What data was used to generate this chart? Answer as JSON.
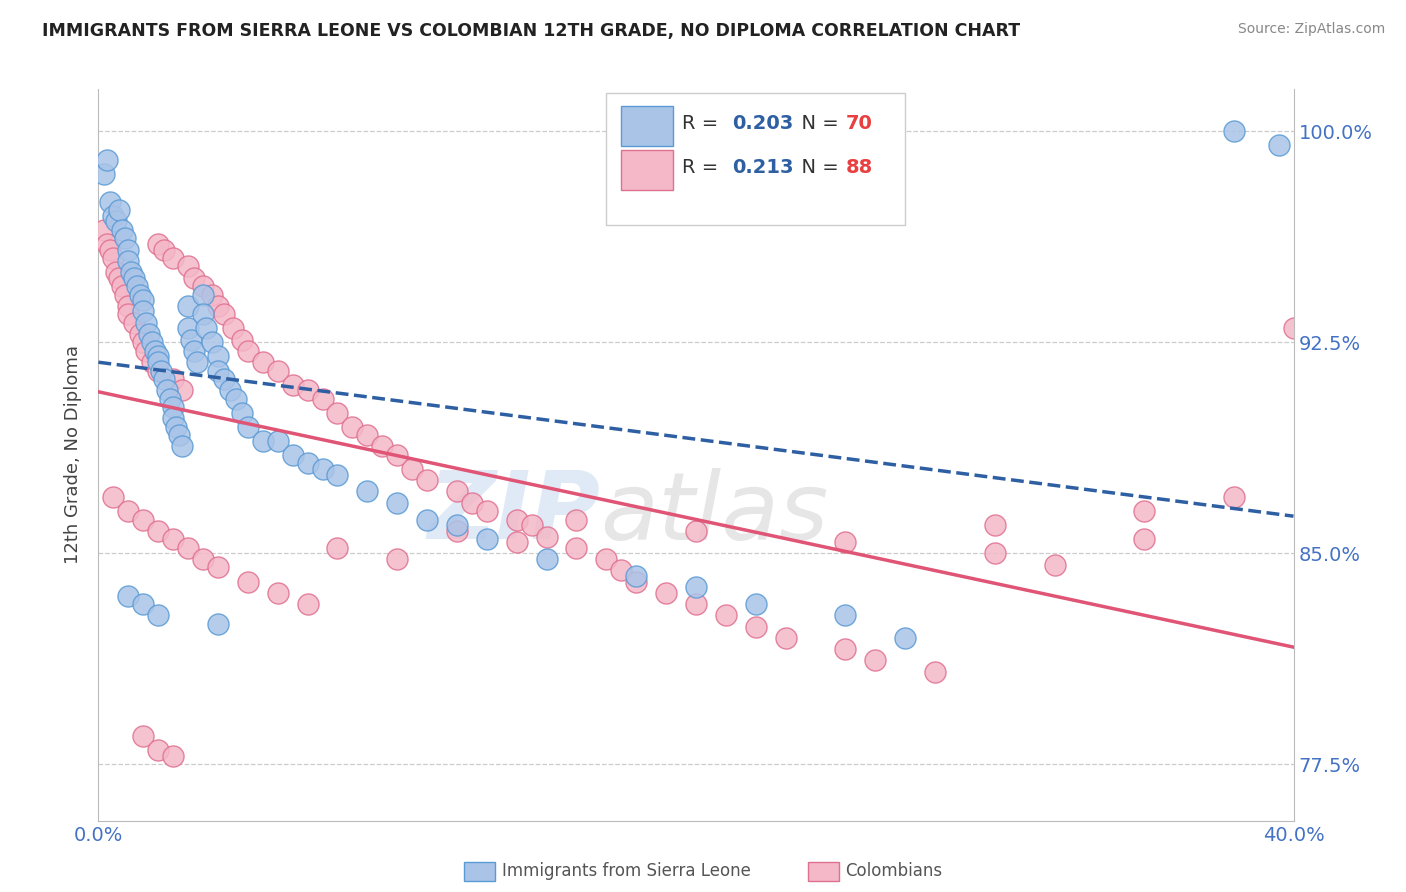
{
  "title": "IMMIGRANTS FROM SIERRA LEONE VS COLOMBIAN 12TH GRADE, NO DIPLOMA CORRELATION CHART",
  "source": "Source: ZipAtlas.com",
  "ylabel": "12th Grade, No Diploma",
  "xlim": [
    0.0,
    0.4
  ],
  "ylim": [
    0.755,
    1.015
  ],
  "yticks": [
    0.775,
    0.85,
    0.925,
    1.0
  ],
  "yticklabels": [
    "77.5%",
    "85.0%",
    "92.5%",
    "100.0%"
  ],
  "blue_R": 0.203,
  "blue_N": 70,
  "pink_R": 0.213,
  "pink_N": 88,
  "blue_color": "#aac4e8",
  "blue_edge": "#5b9bd5",
  "pink_color": "#f4b8c8",
  "pink_edge": "#e07090",
  "blue_line_color": "#2e5fa3",
  "pink_line_color": "#e05575",
  "legend_blue_label": "Immigrants from Sierra Leone",
  "legend_pink_label": "Colombians",
  "blue_x": [
    0.002,
    0.003,
    0.004,
    0.005,
    0.006,
    0.007,
    0.008,
    0.009,
    0.01,
    0.01,
    0.011,
    0.012,
    0.013,
    0.014,
    0.015,
    0.015,
    0.016,
    0.017,
    0.018,
    0.019,
    0.02,
    0.02,
    0.021,
    0.022,
    0.023,
    0.024,
    0.025,
    0.025,
    0.026,
    0.027,
    0.028,
    0.03,
    0.03,
    0.031,
    0.032,
    0.033,
    0.035,
    0.035,
    0.036,
    0.038,
    0.04,
    0.04,
    0.042,
    0.044,
    0.046,
    0.048,
    0.05,
    0.055,
    0.06,
    0.065,
    0.07,
    0.075,
    0.08,
    0.09,
    0.1,
    0.11,
    0.12,
    0.13,
    0.15,
    0.18,
    0.2,
    0.22,
    0.25,
    0.27,
    0.01,
    0.015,
    0.02,
    0.04,
    0.38,
    0.395
  ],
  "blue_y": [
    0.985,
    0.99,
    0.975,
    0.97,
    0.968,
    0.972,
    0.965,
    0.962,
    0.958,
    0.954,
    0.95,
    0.948,
    0.945,
    0.942,
    0.94,
    0.936,
    0.932,
    0.928,
    0.925,
    0.922,
    0.92,
    0.918,
    0.915,
    0.912,
    0.908,
    0.905,
    0.902,
    0.898,
    0.895,
    0.892,
    0.888,
    0.938,
    0.93,
    0.926,
    0.922,
    0.918,
    0.942,
    0.935,
    0.93,
    0.925,
    0.92,
    0.915,
    0.912,
    0.908,
    0.905,
    0.9,
    0.895,
    0.89,
    0.89,
    0.885,
    0.882,
    0.88,
    0.878,
    0.872,
    0.868,
    0.862,
    0.86,
    0.855,
    0.848,
    0.842,
    0.838,
    0.832,
    0.828,
    0.82,
    0.835,
    0.832,
    0.828,
    0.825,
    1.0,
    0.995
  ],
  "pink_x": [
    0.002,
    0.003,
    0.004,
    0.005,
    0.006,
    0.007,
    0.008,
    0.009,
    0.01,
    0.01,
    0.012,
    0.014,
    0.015,
    0.016,
    0.018,
    0.02,
    0.02,
    0.022,
    0.025,
    0.025,
    0.028,
    0.03,
    0.032,
    0.035,
    0.038,
    0.04,
    0.042,
    0.045,
    0.048,
    0.05,
    0.055,
    0.06,
    0.065,
    0.07,
    0.075,
    0.08,
    0.085,
    0.09,
    0.095,
    0.1,
    0.105,
    0.11,
    0.12,
    0.125,
    0.13,
    0.14,
    0.145,
    0.15,
    0.16,
    0.17,
    0.175,
    0.18,
    0.19,
    0.2,
    0.21,
    0.22,
    0.23,
    0.25,
    0.26,
    0.28,
    0.3,
    0.32,
    0.35,
    0.005,
    0.01,
    0.015,
    0.02,
    0.025,
    0.03,
    0.035,
    0.04,
    0.05,
    0.06,
    0.07,
    0.08,
    0.1,
    0.12,
    0.14,
    0.16,
    0.2,
    0.25,
    0.3,
    0.35,
    0.38,
    0.015,
    0.02,
    0.025,
    0.4
  ],
  "pink_y": [
    0.965,
    0.96,
    0.958,
    0.955,
    0.95,
    0.948,
    0.945,
    0.942,
    0.938,
    0.935,
    0.932,
    0.928,
    0.925,
    0.922,
    0.918,
    0.96,
    0.915,
    0.958,
    0.955,
    0.912,
    0.908,
    0.952,
    0.948,
    0.945,
    0.942,
    0.938,
    0.935,
    0.93,
    0.926,
    0.922,
    0.918,
    0.915,
    0.91,
    0.908,
    0.905,
    0.9,
    0.895,
    0.892,
    0.888,
    0.885,
    0.88,
    0.876,
    0.872,
    0.868,
    0.865,
    0.862,
    0.86,
    0.856,
    0.852,
    0.848,
    0.844,
    0.84,
    0.836,
    0.832,
    0.828,
    0.824,
    0.82,
    0.816,
    0.812,
    0.808,
    0.85,
    0.846,
    0.855,
    0.87,
    0.865,
    0.862,
    0.858,
    0.855,
    0.852,
    0.848,
    0.845,
    0.84,
    0.836,
    0.832,
    0.852,
    0.848,
    0.858,
    0.854,
    0.862,
    0.858,
    0.854,
    0.86,
    0.865,
    0.87,
    0.785,
    0.78,
    0.778,
    0.93
  ]
}
